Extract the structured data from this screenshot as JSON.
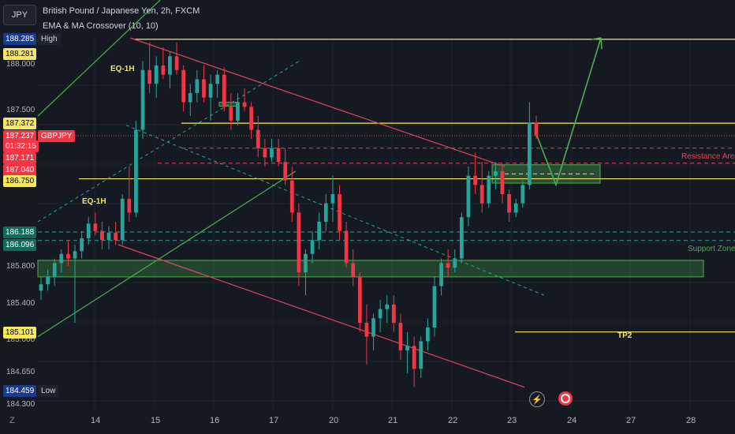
{
  "header": {
    "symbol_box": "JPY",
    "title": "British Pound / Japanese Yen, 2h, FXCM",
    "indicator": "EMA & MA Crossover (10, 10)"
  },
  "price_axis": {
    "ticks": [
      "188.000",
      "187.500",
      "185.800",
      "185.400",
      "185.000",
      "184.650",
      "184.300"
    ]
  },
  "price_labels": [
    {
      "value": "188.285",
      "tag": "High",
      "bg": "#1a3a8a",
      "fg": "#ffffff"
    },
    {
      "value": "188.281",
      "tag": "",
      "bg": "#f5e663",
      "fg": "#000000"
    },
    {
      "value": "187.372",
      "tag": "",
      "bg": "#f5e663",
      "fg": "#000000"
    },
    {
      "value": "187.237",
      "tag": "GBPJPY",
      "bg": "#f23645",
      "fg": "#ffffff"
    },
    {
      "value": "01:32:15",
      "tag": "",
      "bg": "#f23645",
      "fg": "#ffffff"
    },
    {
      "value": "187.171",
      "tag": "",
      "bg": "#f23645",
      "fg": "#ffffff"
    },
    {
      "value": "187.040",
      "tag": "",
      "bg": "#f23645",
      "fg": "#ffffff"
    },
    {
      "value": "186.750",
      "tag": "",
      "bg": "#f5e663",
      "fg": "#000000"
    },
    {
      "value": "186.188",
      "tag": "",
      "bg": "#0d6e5f",
      "fg": "#ffffff"
    },
    {
      "value": "186.096",
      "tag": "",
      "bg": "#0d6e5f",
      "fg": "#ffffff"
    },
    {
      "value": "185.101",
      "tag": "",
      "bg": "#f5e663",
      "fg": "#000000"
    },
    {
      "value": "184.459",
      "tag": "Low",
      "bg": "#1a3a8a",
      "fg": "#ffffff"
    }
  ],
  "time_axis": {
    "ticks": [
      "14",
      "15",
      "16",
      "17",
      "20",
      "21",
      "22",
      "23",
      "24",
      "27",
      "28"
    ]
  },
  "annotations": {
    "eq_top": "EQ-1H",
    "eq_bottom": "EQ-1H",
    "resistance": "Resistance Area",
    "support": "Support Zone",
    "tp2": "TP2"
  },
  "footer": {
    "z_label": "Z"
  },
  "colors": {
    "bull": "#26a69a",
    "bear": "#f23645",
    "yellow": "#f5e663",
    "green_line": "#4caf50",
    "red_line": "#e0445a",
    "teal_dash": "#26a69a"
  },
  "chart_data": {
    "type": "candlestick",
    "symbol": "GBPJPY",
    "timeframe": "2h",
    "ylim": [
      184.3,
      188.3
    ],
    "x_ticks": [
      "14",
      "15",
      "16",
      "17",
      "20",
      "21",
      "22",
      "23",
      "24",
      "27",
      "28"
    ],
    "levels": {
      "high": 188.285,
      "eq_top": 188.281,
      "upper_yellow": 187.372,
      "current": 187.237,
      "resistance_a": 187.171,
      "resistance_b": 187.04,
      "eq_bottom": 186.75,
      "support_a": 186.188,
      "support_b": 186.096,
      "tp2": 185.101,
      "low": 184.459
    },
    "candles": [
      [
        185.55,
        185.7,
        185.45,
        185.62
      ],
      [
        185.62,
        185.78,
        185.55,
        185.7
      ],
      [
        185.7,
        185.9,
        185.6,
        185.85
      ],
      [
        185.85,
        186.0,
        185.75,
        185.95
      ],
      [
        185.95,
        186.1,
        185.82,
        185.9
      ],
      [
        185.9,
        186.05,
        185.2,
        185.98
      ],
      [
        185.98,
        186.2,
        185.9,
        186.12
      ],
      [
        186.12,
        186.35,
        186.05,
        186.28
      ],
      [
        186.28,
        186.4,
        186.15,
        186.2
      ],
      [
        186.2,
        186.3,
        186.0,
        186.1
      ],
      [
        186.1,
        186.25,
        186.0,
        186.18
      ],
      [
        186.18,
        186.3,
        186.05,
        186.1
      ],
      [
        186.1,
        186.6,
        186.05,
        186.55
      ],
      [
        186.55,
        186.9,
        186.3,
        186.4
      ],
      [
        186.4,
        187.4,
        186.35,
        187.3
      ],
      [
        187.3,
        188.05,
        187.2,
        187.95
      ],
      [
        187.95,
        188.25,
        187.7,
        187.8
      ],
      [
        187.8,
        188.1,
        187.65,
        188.0
      ],
      [
        188.0,
        188.2,
        187.85,
        187.9
      ],
      [
        187.9,
        188.15,
        187.75,
        188.1
      ],
      [
        188.1,
        188.25,
        187.9,
        187.95
      ],
      [
        187.95,
        188.0,
        187.5,
        187.6
      ],
      [
        187.6,
        187.8,
        187.45,
        187.7
      ],
      [
        187.7,
        187.95,
        187.6,
        187.85
      ],
      [
        187.85,
        188.0,
        187.6,
        187.65
      ],
      [
        187.65,
        187.9,
        187.4,
        187.8
      ],
      [
        187.8,
        187.95,
        187.65,
        187.9
      ],
      [
        187.9,
        187.98,
        187.5,
        187.55
      ],
      [
        187.55,
        187.7,
        187.3,
        187.4
      ],
      [
        187.4,
        187.7,
        187.35,
        187.6
      ],
      [
        187.6,
        187.75,
        187.5,
        187.55
      ],
      [
        187.55,
        187.6,
        187.2,
        187.3
      ],
      [
        187.3,
        187.45,
        187.0,
        187.1
      ],
      [
        187.1,
        187.2,
        186.9,
        187.0
      ],
      [
        187.0,
        187.2,
        186.95,
        187.1
      ],
      [
        187.1,
        187.2,
        186.9,
        186.95
      ],
      [
        186.95,
        187.1,
        186.7,
        186.75
      ],
      [
        186.75,
        186.9,
        186.3,
        186.4
      ],
      [
        186.4,
        186.5,
        185.6,
        185.75
      ],
      [
        185.75,
        186.0,
        185.5,
        185.95
      ],
      [
        185.95,
        186.2,
        185.85,
        186.1
      ],
      [
        186.1,
        186.4,
        186.0,
        186.3
      ],
      [
        186.3,
        186.6,
        186.2,
        186.5
      ],
      [
        186.5,
        186.8,
        186.3,
        186.6
      ],
      [
        186.6,
        186.7,
        186.1,
        186.2
      ],
      [
        186.2,
        186.3,
        185.8,
        185.85
      ],
      [
        185.85,
        186.0,
        185.6,
        185.7
      ],
      [
        185.7,
        185.75,
        185.1,
        185.2
      ],
      [
        185.2,
        185.4,
        184.75,
        185.05
      ],
      [
        185.05,
        185.3,
        184.9,
        185.25
      ],
      [
        185.25,
        185.45,
        185.1,
        185.35
      ],
      [
        185.35,
        185.5,
        185.2,
        185.4
      ],
      [
        185.4,
        185.5,
        185.1,
        185.2
      ],
      [
        185.2,
        185.3,
        184.8,
        184.9
      ],
      [
        184.9,
        185.1,
        184.65,
        184.95
      ],
      [
        184.95,
        185.05,
        184.5,
        184.7
      ],
      [
        184.7,
        185.05,
        184.6,
        185.0
      ],
      [
        185.0,
        185.25,
        184.9,
        185.15
      ],
      [
        185.15,
        185.7,
        185.05,
        185.6
      ],
      [
        185.6,
        185.9,
        185.5,
        185.85
      ],
      [
        185.85,
        186.0,
        185.7,
        185.8
      ],
      [
        185.8,
        186.0,
        185.75,
        185.9
      ],
      [
        185.9,
        186.4,
        185.85,
        186.35
      ],
      [
        186.35,
        186.9,
        186.25,
        186.8
      ],
      [
        186.8,
        187.05,
        186.6,
        186.7
      ],
      [
        186.7,
        186.95,
        186.4,
        186.5
      ],
      [
        186.5,
        186.85,
        186.45,
        186.8
      ],
      [
        186.8,
        186.95,
        186.65,
        186.85
      ],
      [
        186.85,
        186.9,
        186.5,
        186.6
      ],
      [
        186.6,
        186.65,
        186.3,
        186.4
      ],
      [
        186.4,
        186.55,
        186.35,
        186.5
      ],
      [
        186.5,
        186.75,
        186.45,
        186.7
      ],
      [
        186.7,
        187.6,
        186.65,
        187.38
      ],
      [
        187.38,
        187.45,
        187.2,
        187.24
      ]
    ],
    "zones": [
      {
        "name": "Support Zone",
        "from": 185.7,
        "to": 185.88
      },
      {
        "name": "Resistance Area",
        "from": 186.72,
        "to": 186.92
      }
    ]
  }
}
